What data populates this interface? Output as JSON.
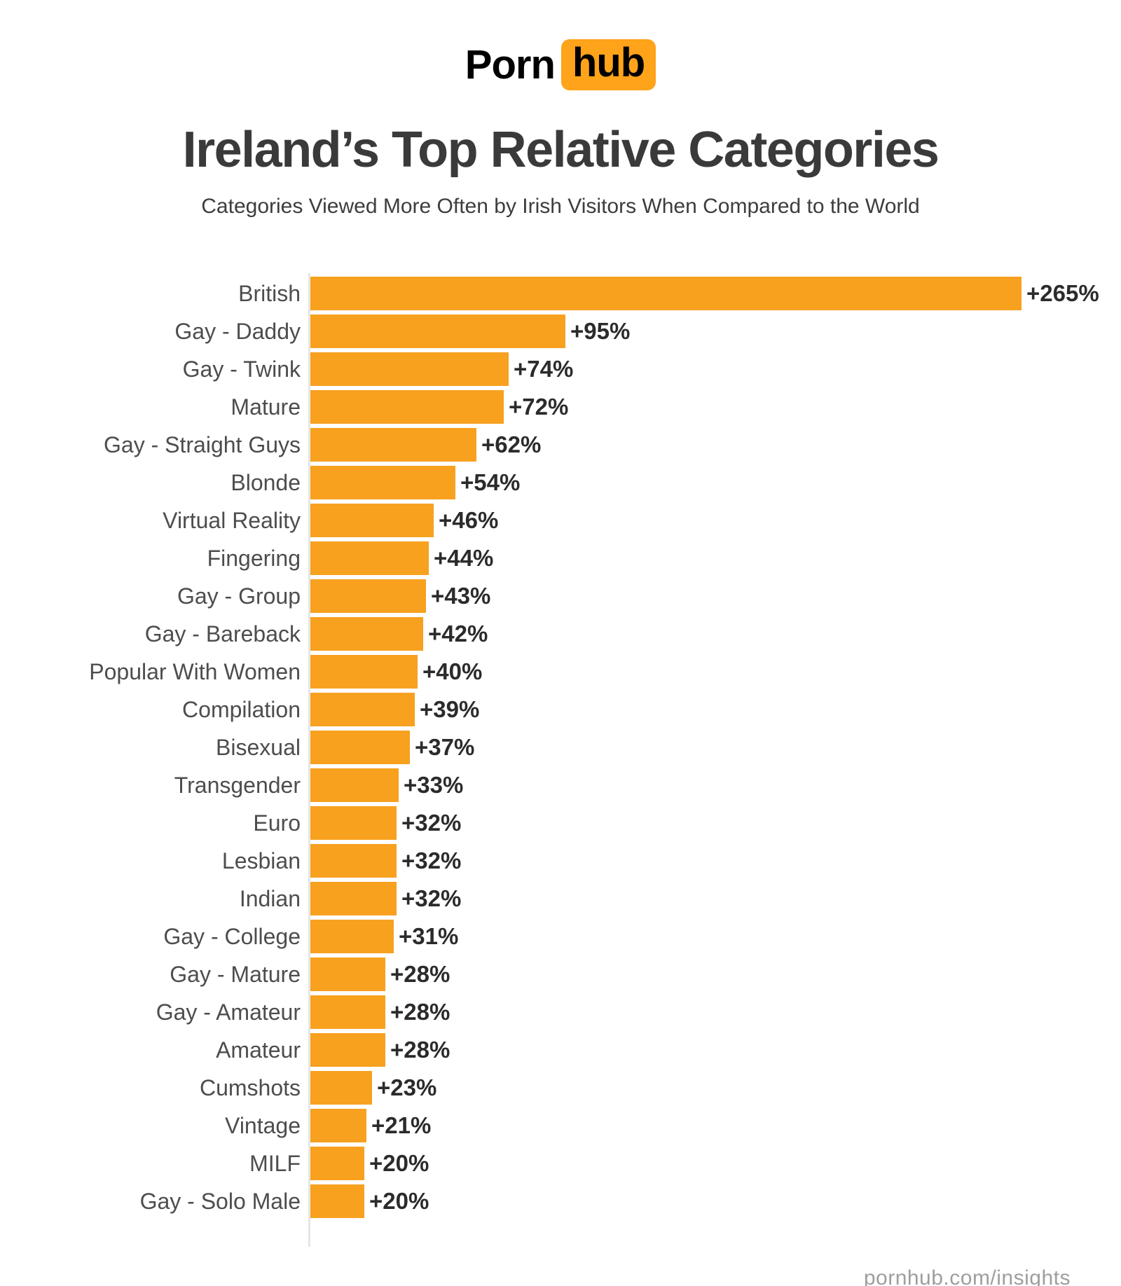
{
  "logo": {
    "part1": "Porn",
    "part2": "hub",
    "logo_orange": "#FFA31A"
  },
  "header": {
    "title": "Ireland’s Top Relative Categories",
    "subtitle": "Categories Viewed More Often by Irish Visitors When Compared to the World"
  },
  "chart_data": {
    "type": "bar",
    "orientation": "horizontal",
    "title": "Ireland’s Top Relative Categories",
    "subtitle": "Categories Viewed More Often by Irish Visitors When Compared to the World",
    "categories": [
      "British",
      "Gay - Daddy",
      "Gay - Twink",
      "Mature",
      "Gay - Straight Guys",
      "Blonde",
      "Virtual Reality",
      "Fingering",
      "Gay - Group",
      "Gay - Bareback",
      "Popular With Women",
      "Compilation",
      "Bisexual",
      "Transgender",
      "Euro",
      "Lesbian",
      "Indian",
      "Gay - College",
      "Gay - Mature",
      "Gay - Amateur",
      "Amateur",
      "Cumshots",
      "Vintage",
      "MILF",
      "Gay - Solo Male"
    ],
    "values": [
      265,
      95,
      74,
      72,
      62,
      54,
      46,
      44,
      43,
      42,
      40,
      39,
      37,
      33,
      32,
      32,
      32,
      31,
      28,
      28,
      28,
      23,
      21,
      20,
      20
    ],
    "value_labels": [
      "+265%",
      "+95%",
      "+74%",
      "+72%",
      "+62%",
      "+54%",
      "+46%",
      "+44%",
      "+43%",
      "+42%",
      "+40%",
      "+39%",
      "+37%",
      "+33%",
      "+32%",
      "+32%",
      "+32%",
      "+31%",
      "+28%",
      "+28%",
      "+28%",
      "+23%",
      "+21%",
      "+20%",
      "+20%"
    ],
    "xlim": [
      0,
      265
    ],
    "grid": false,
    "legend": false,
    "bar_color": "#F7A11F",
    "axis_color": "#E6E6E6"
  },
  "footer": {
    "site_label": "pornhub.com/insights"
  }
}
